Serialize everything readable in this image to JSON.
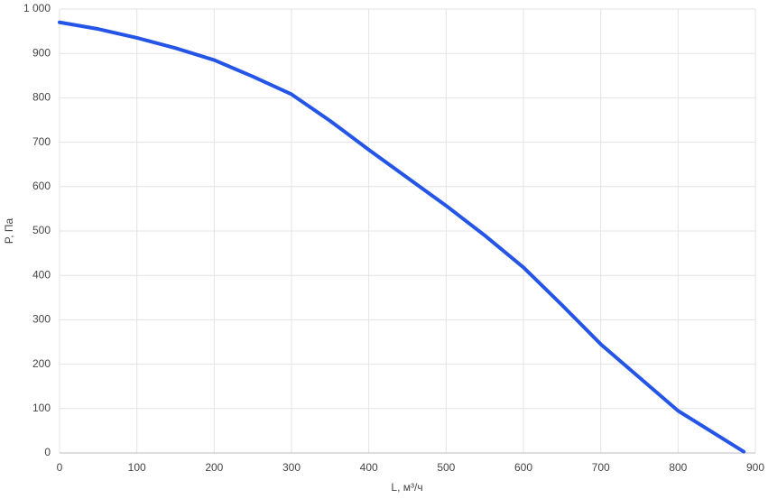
{
  "chart_data": {
    "type": "line",
    "x_label": "L, м³/ч",
    "y_label": "P, Па",
    "x": [
      0,
      50,
      100,
      150,
      200,
      250,
      300,
      350,
      400,
      450,
      500,
      550,
      600,
      650,
      700,
      750,
      800,
      885
    ],
    "series": [
      {
        "color": "#2455e6",
        "values": [
          970,
          955,
          935,
          912,
          885,
          848,
          808,
          748,
          683,
          620,
          557,
          490,
          418,
          333,
          245,
          170,
          95,
          3
        ]
      }
    ],
    "xlim": [
      0,
      900
    ],
    "xticks": [
      0,
      100,
      200,
      300,
      400,
      500,
      600,
      700,
      800,
      900
    ],
    "ylim": [
      0,
      1000
    ],
    "yticks": [
      0,
      100,
      200,
      300,
      400,
      500,
      600,
      700,
      800,
      900,
      {
        "value": 1000,
        "label": "1 000"
      }
    ],
    "grid": true
  }
}
